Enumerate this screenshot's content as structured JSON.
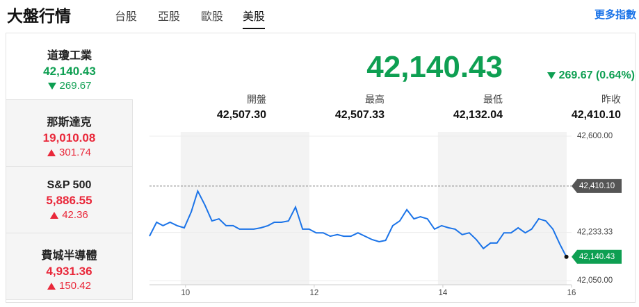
{
  "header": {
    "title": "大盤行情",
    "tabs": [
      "台股",
      "亞股",
      "歐股",
      "美股"
    ],
    "active_tab": 3,
    "more_link": "更多指數"
  },
  "indices": [
    {
      "name": "道瓊工業",
      "value": "42,140.43",
      "change": "269.67",
      "direction": "down",
      "selected": true
    },
    {
      "name": "那斯達克",
      "value": "19,010.08",
      "change": "301.74",
      "direction": "up",
      "selected": false
    },
    {
      "name": "S&P 500",
      "value": "5,886.55",
      "change": "42.36",
      "direction": "up",
      "selected": false
    },
    {
      "name": "費城半導體",
      "value": "4,931.36",
      "change": "150.42",
      "direction": "up",
      "selected": false
    }
  ],
  "quote": {
    "price": "42,140.43",
    "change": "269.67 (0.64%)",
    "direction": "down"
  },
  "stats": [
    {
      "label": "開盤",
      "value": "42,507.30"
    },
    {
      "label": "最高",
      "value": "42,507.33"
    },
    {
      "label": "最低",
      "value": "42,132.04"
    },
    {
      "label": "昨收",
      "value": "42,410.10"
    }
  ],
  "chart_data": {
    "type": "line",
    "color": "#1a73e8",
    "grid": true,
    "x": [
      9.44,
      9.55,
      9.65,
      9.76,
      9.87,
      9.98,
      10.09,
      10.19,
      10.3,
      10.41,
      10.52,
      10.63,
      10.74,
      10.84,
      10.95,
      11.06,
      11.17,
      11.28,
      11.38,
      11.49,
      11.6,
      11.71,
      11.82,
      11.92,
      12.03,
      12.14,
      12.25,
      12.36,
      12.46,
      12.57,
      12.68,
      12.79,
      12.9,
      13.01,
      13.11,
      13.22,
      13.33,
      13.44,
      13.55,
      13.65,
      13.76,
      13.87,
      13.98,
      14.09,
      14.19,
      14.3,
      14.41,
      14.52,
      14.63,
      14.74,
      14.84,
      14.95,
      15.06,
      15.17,
      15.28,
      15.38,
      15.49,
      15.6,
      15.71,
      15.82,
      15.92
    ],
    "values": [
      42219,
      42272,
      42259,
      42272,
      42259,
      42251,
      42312,
      42391,
      42338,
      42277,
      42285,
      42259,
      42259,
      42246,
      42246,
      42246,
      42251,
      42259,
      42272,
      42272,
      42277,
      42330,
      42246,
      42246,
      42232,
      42232,
      42219,
      42225,
      42219,
      42219,
      42232,
      42219,
      42206,
      42198,
      42203,
      42259,
      42277,
      42320,
      42285,
      42293,
      42285,
      42246,
      42259,
      42251,
      42246,
      42225,
      42232,
      42206,
      42172,
      42193,
      42193,
      42232,
      42232,
      42251,
      42232,
      42246,
      42285,
      42277,
      42246,
      42188,
      42140.43
    ],
    "xlim": [
      9.44,
      16
    ],
    "xticks": [
      10,
      12,
      14,
      16
    ],
    "ylim": [
      42034,
      42616
    ],
    "yticks": [
      {
        "value": 42600,
        "label": "42,600.00"
      },
      {
        "value": 42233.33,
        "label": "42,233.33"
      },
      {
        "value": 42050,
        "label": "42,050.00"
      }
    ],
    "reference_line": {
      "value": 42410.1,
      "label": "42,410.10"
    },
    "last_label": {
      "value": 42140.43,
      "label": "42,140.43"
    }
  }
}
